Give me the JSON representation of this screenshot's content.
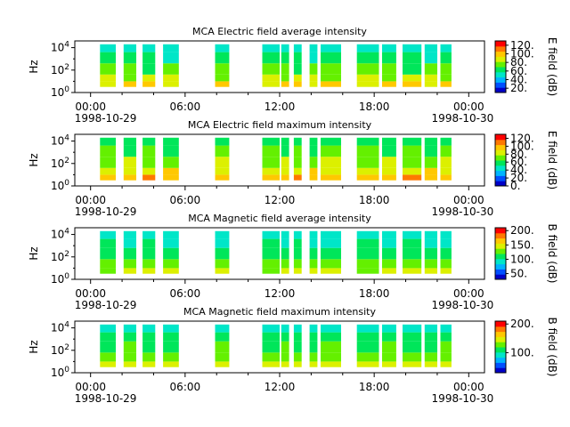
{
  "figure": {
    "background": "#ffffff"
  },
  "colormap": [
    "#0000c8",
    "#0050ff",
    "#00b4ff",
    "#00e6c8",
    "#00e65a",
    "#64f000",
    "#dcf000",
    "#ffc800",
    "#ff7800",
    "#ff0000"
  ],
  "chart_data": [
    {
      "type": "heatmap",
      "title": "MCA  Electric field average intensity",
      "ylabel": "Hz",
      "colorbar_label": "E field (dB)",
      "colorbar_ticks": [
        "20.",
        "40.",
        "60.",
        "80.",
        "100.",
        "120."
      ],
      "colorbar_range": [
        10,
        130
      ],
      "y_ticks": [
        "10^0",
        "10^2",
        "10^4"
      ],
      "x_ticks": [
        "00:00",
        "06:00",
        "12:00",
        "18:00",
        "00:00"
      ],
      "x_start_date": "1998-10-29",
      "x_end_date": "1998-10-30",
      "x_range_hours": [
        -1,
        25
      ],
      "y_range_log10": [
        0,
        4.6
      ],
      "data_band_log10": [
        0.5,
        4.3
      ],
      "segments_hours": [
        [
          0.6,
          1.6
        ],
        [
          2.1,
          2.9
        ],
        [
          3.3,
          4.1
        ],
        [
          4.6,
          5.6
        ],
        [
          7.9,
          8.8
        ],
        [
          10.9,
          12.0
        ],
        [
          12.1,
          12.6
        ],
        [
          12.9,
          13.4
        ],
        [
          13.9,
          14.4
        ],
        [
          14.6,
          15.9
        ],
        [
          16.9,
          18.3
        ],
        [
          18.5,
          19.4
        ],
        [
          19.8,
          21.0
        ],
        [
          21.2,
          22.0
        ],
        [
          22.2,
          22.9
        ]
      ],
      "intensity_bands_dB": [
        {
          "log10_hz": [
            0.5,
            1.0
          ],
          "level": 95
        },
        {
          "log10_hz": [
            1.0,
            1.6
          ],
          "level": 82
        },
        {
          "log10_hz": [
            1.6,
            2.6
          ],
          "level": 72
        },
        {
          "log10_hz": [
            2.6,
            3.6
          ],
          "level": 60
        },
        {
          "log10_hz": [
            3.6,
            4.3
          ],
          "level": 52
        }
      ]
    },
    {
      "type": "heatmap",
      "title": "MCA  Electric field maximum intensity",
      "ylabel": "Hz",
      "colorbar_label": "E field (dB)",
      "colorbar_ticks": [
        "0.",
        "20.",
        "40.",
        "60.",
        "80.",
        "100.",
        "120."
      ],
      "colorbar_range": [
        0,
        130
      ],
      "y_ticks": [
        "10^0",
        "10^2",
        "10^4"
      ],
      "x_ticks": [
        "00:00",
        "06:00",
        "12:00",
        "18:00",
        "00:00"
      ],
      "x_start_date": "1998-10-29",
      "x_end_date": "1998-10-30",
      "x_range_hours": [
        -1,
        25
      ],
      "y_range_log10": [
        0,
        4.6
      ],
      "data_band_log10": [
        0.5,
        4.3
      ],
      "segments_hours": [
        [
          0.6,
          1.6
        ],
        [
          2.1,
          2.9
        ],
        [
          3.3,
          4.1
        ],
        [
          4.6,
          5.6
        ],
        [
          7.9,
          8.8
        ],
        [
          10.9,
          12.0
        ],
        [
          12.1,
          12.6
        ],
        [
          12.9,
          13.4
        ],
        [
          13.9,
          14.4
        ],
        [
          14.6,
          15.9
        ],
        [
          16.9,
          18.3
        ],
        [
          18.5,
          19.4
        ],
        [
          19.8,
          21.0
        ],
        [
          21.2,
          22.0
        ],
        [
          22.2,
          22.9
        ]
      ],
      "intensity_bands_dB": [
        {
          "log10_hz": [
            0.5,
            1.0
          ],
          "level": 100
        },
        {
          "log10_hz": [
            1.0,
            1.6
          ],
          "level": 88
        },
        {
          "log10_hz": [
            1.6,
            2.6
          ],
          "level": 76
        },
        {
          "log10_hz": [
            2.6,
            3.6
          ],
          "level": 66
        },
        {
          "log10_hz": [
            3.6,
            4.3
          ],
          "level": 58
        }
      ]
    },
    {
      "type": "heatmap",
      "title": "MCA  Magnetic field average intensity",
      "ylabel": "Hz",
      "colorbar_label": "B field (dB)",
      "colorbar_ticks": [
        "50.",
        "100.",
        "150.",
        "200."
      ],
      "colorbar_range": [
        30,
        210
      ],
      "y_ticks": [
        "10^0",
        "10^2",
        "10^4"
      ],
      "x_ticks": [
        "00:00",
        "06:00",
        "12:00",
        "18:00",
        "00:00"
      ],
      "x_start_date": "1998-10-29",
      "x_end_date": "1998-10-30",
      "x_range_hours": [
        -1,
        25
      ],
      "y_range_log10": [
        0,
        4.6
      ],
      "data_band_log10": [
        0.5,
        4.3
      ],
      "segments_hours": [
        [
          0.6,
          1.6
        ],
        [
          2.1,
          2.9
        ],
        [
          3.3,
          4.1
        ],
        [
          4.6,
          5.6
        ],
        [
          7.9,
          8.8
        ],
        [
          10.9,
          12.0
        ],
        [
          12.1,
          12.6
        ],
        [
          12.9,
          13.4
        ],
        [
          13.9,
          14.4
        ],
        [
          14.6,
          15.9
        ],
        [
          16.9,
          18.3
        ],
        [
          18.5,
          19.4
        ],
        [
          19.8,
          21.0
        ],
        [
          21.2,
          22.0
        ],
        [
          22.2,
          22.9
        ]
      ],
      "intensity_bands_dB": [
        {
          "log10_hz": [
            0.5,
            1.0
          ],
          "level": 140
        },
        {
          "log10_hz": [
            1.0,
            1.8
          ],
          "level": 125
        },
        {
          "log10_hz": [
            1.8,
            2.8
          ],
          "level": 112
        },
        {
          "log10_hz": [
            2.8,
            3.6
          ],
          "level": 100
        },
        {
          "log10_hz": [
            3.6,
            4.3
          ],
          "level": 88
        }
      ]
    },
    {
      "type": "heatmap",
      "title": "MCA  Magnetic field maximum intensity",
      "ylabel": "Hz",
      "colorbar_label": "B field (dB)",
      "colorbar_ticks": [
        "100.",
        "200."
      ],
      "colorbar_range": [
        30,
        210
      ],
      "y_ticks": [
        "10^0",
        "10^2",
        "10^4"
      ],
      "x_ticks": [
        "00:00",
        "06:00",
        "12:00",
        "18:00",
        "00:00"
      ],
      "x_start_date": "1998-10-29",
      "x_end_date": "1998-10-30",
      "x_range_hours": [
        -1,
        25
      ],
      "y_range_log10": [
        0,
        4.6
      ],
      "data_band_log10": [
        0.5,
        4.3
      ],
      "segments_hours": [
        [
          0.6,
          1.6
        ],
        [
          2.1,
          2.9
        ],
        [
          3.3,
          4.1
        ],
        [
          4.6,
          5.6
        ],
        [
          7.9,
          8.8
        ],
        [
          10.9,
          12.0
        ],
        [
          12.1,
          12.6
        ],
        [
          12.9,
          13.4
        ],
        [
          13.9,
          14.4
        ],
        [
          14.6,
          15.9
        ],
        [
          16.9,
          18.3
        ],
        [
          18.5,
          19.4
        ],
        [
          19.8,
          21.0
        ],
        [
          21.2,
          22.0
        ],
        [
          22.2,
          22.9
        ]
      ],
      "intensity_bands_dB": [
        {
          "log10_hz": [
            0.5,
            1.0
          ],
          "level": 150
        },
        {
          "log10_hz": [
            1.0,
            1.8
          ],
          "level": 132
        },
        {
          "log10_hz": [
            1.8,
            2.8
          ],
          "level": 118
        },
        {
          "log10_hz": [
            2.8,
            3.6
          ],
          "level": 106
        },
        {
          "log10_hz": [
            3.6,
            4.3
          ],
          "level": 95
        }
      ]
    }
  ]
}
